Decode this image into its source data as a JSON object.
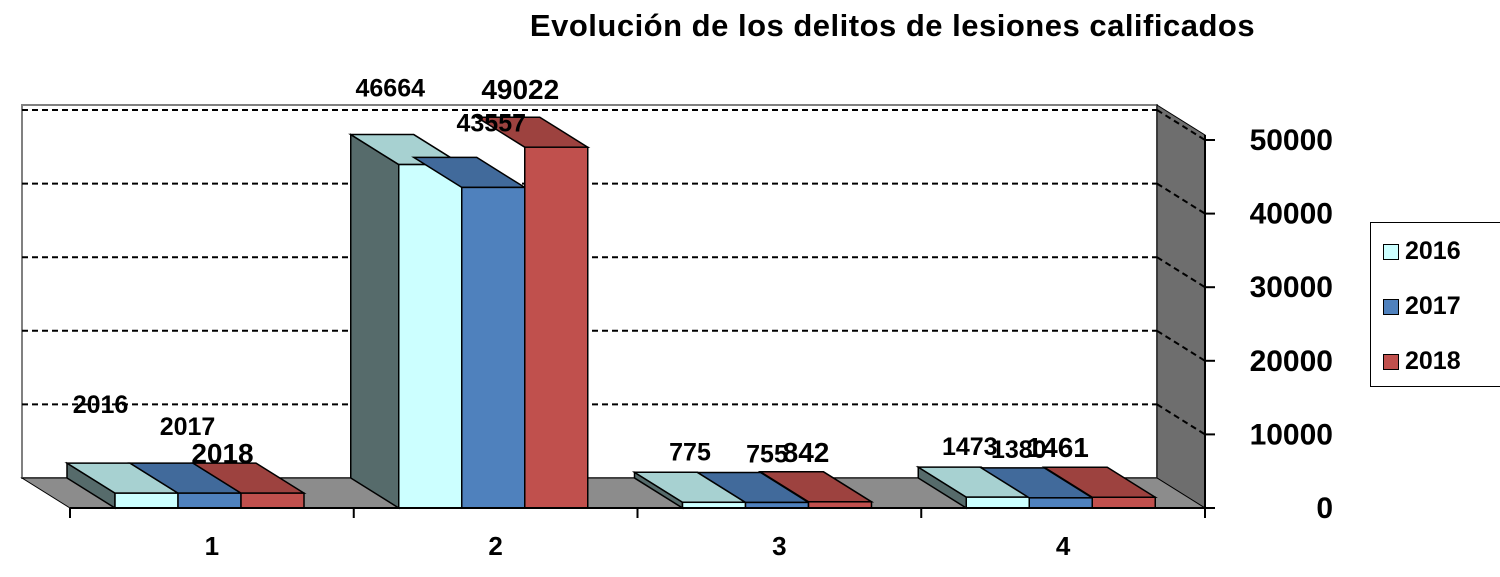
{
  "chart_data": {
    "type": "bar",
    "title": "Evolución de los delitos de lesiones calificados",
    "categories": [
      "1",
      "2",
      "3",
      "4"
    ],
    "series": [
      {
        "name": "2016",
        "color": "#ccffff",
        "values": [
          2016,
          46664,
          775,
          1473
        ]
      },
      {
        "name": "2017",
        "color": "#4f81bd",
        "values": [
          2017,
          43557,
          755,
          1380
        ]
      },
      {
        "name": "2018",
        "color": "#c0504d",
        "values": [
          2018,
          49022,
          842,
          1461
        ]
      }
    ],
    "data_labels": [
      [
        "2016",
        "2017",
        "2018"
      ],
      [
        "46664",
        "43557",
        "49022"
      ],
      [
        "775",
        "755",
        "842"
      ],
      [
        "1473",
        "1380",
        "1461"
      ]
    ],
    "y_ticks": [
      "0",
      "10000",
      "20000",
      "30000",
      "40000",
      "50000"
    ],
    "ylim": [
      0,
      50000
    ],
    "grid": true,
    "legend_position": "right",
    "xlabel": "",
    "ylabel": ""
  }
}
